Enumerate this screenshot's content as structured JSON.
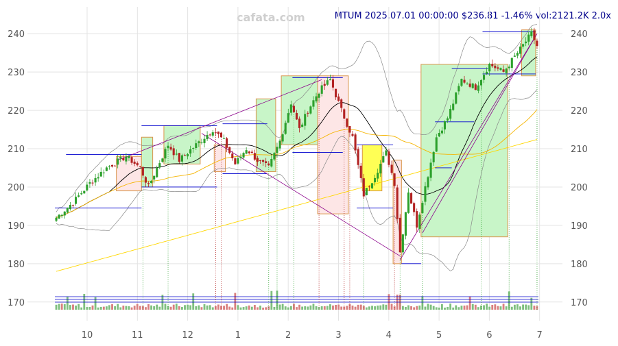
{
  "header": {
    "brand": "cafata.com",
    "quote": "MTUM 2025.07.01 00:00:00 $236.81 -1.46% vol:2121.2K 2.0x"
  },
  "colors": {
    "up": "#2ca02c",
    "down": "#b22222",
    "grid": "#e3e3e3",
    "bb_band": "#888888",
    "ma_short": "#000000",
    "ma_mid": "#f5b400",
    "ma_long": "#ffd700",
    "trend": "#8b008b",
    "level": "#0000cd",
    "box_green_fill": "#c8f5c8",
    "box_green_stroke": "#d9944a",
    "box_red_fill": "#fde6e6",
    "box_yellow_fill": "#ffff55"
  },
  "chart_data": {
    "type": "candlestick",
    "title": "MTUM 2025.07.01 00:00:00 $236.81 -1.46% vol:2121.2K 2.0x",
    "x_ticks": [
      "10",
      "11",
      "12",
      "1",
      "2",
      "3",
      "4",
      "5",
      "6",
      "7"
    ],
    "y_ticks": [
      170,
      180,
      190,
      200,
      210,
      220,
      230,
      240
    ],
    "ylim": [
      168,
      247
    ],
    "grid": true,
    "last_price": 236.81,
    "change_pct": -1.46,
    "volume": "2121.2K",
    "volume_ratio": "2.0x",
    "close_waypoints": [
      [
        0,
        192
      ],
      [
        6,
        196
      ],
      [
        12,
        201
      ],
      [
        18,
        205
      ],
      [
        25,
        208
      ],
      [
        30,
        205
      ],
      [
        33,
        200
      ],
      [
        36,
        205
      ],
      [
        40,
        211
      ],
      [
        44,
        207
      ],
      [
        50,
        211
      ],
      [
        56,
        215
      ],
      [
        60,
        212
      ],
      [
        64,
        206
      ],
      [
        68,
        210
      ],
      [
        72,
        207
      ],
      [
        76,
        205
      ],
      [
        80,
        212
      ],
      [
        84,
        222
      ],
      [
        87,
        215
      ],
      [
        90,
        220
      ],
      [
        94,
        225
      ],
      [
        98,
        228
      ],
      [
        102,
        220
      ],
      [
        106,
        213
      ],
      [
        110,
        198
      ],
      [
        114,
        203
      ],
      [
        118,
        209
      ],
      [
        121,
        201
      ],
      [
        123,
        183
      ],
      [
        126,
        199
      ],
      [
        129,
        190
      ],
      [
        132,
        200
      ],
      [
        136,
        213
      ],
      [
        140,
        218
      ],
      [
        145,
        228
      ],
      [
        150,
        226
      ],
      [
        155,
        232
      ],
      [
        160,
        230
      ],
      [
        165,
        235
      ],
      [
        170,
        240
      ],
      [
        172,
        237
      ]
    ],
    "total_bars": 173,
    "boxes": [
      {
        "x0": 22,
        "x1": 31,
        "y0": 199,
        "y1": 208,
        "kind": "red"
      },
      {
        "x0": 31,
        "x1": 35,
        "y0": 200,
        "y1": 213,
        "kind": "green"
      },
      {
        "x0": 39,
        "x1": 52,
        "y0": 206,
        "y1": 216,
        "kind": "green"
      },
      {
        "x0": 57,
        "x1": 61,
        "y0": 204,
        "y1": 211,
        "kind": "red"
      },
      {
        "x0": 72,
        "x1": 79,
        "y0": 204,
        "y1": 223,
        "kind": "green"
      },
      {
        "x0": 81,
        "x1": 94,
        "y0": 211,
        "y1": 229,
        "kind": "green"
      },
      {
        "x0": 94,
        "x1": 105,
        "y0": 193,
        "y1": 229,
        "kind": "red"
      },
      {
        "x0": 110,
        "x1": 117,
        "y0": 199,
        "y1": 211,
        "kind": "yellow"
      },
      {
        "x0": 121,
        "x1": 124,
        "y0": 180,
        "y1": 207,
        "kind": "red"
      },
      {
        "x0": 131,
        "x1": 162,
        "y0": 187,
        "y1": 232,
        "kind": "green"
      },
      {
        "x0": 167,
        "x1": 172,
        "y0": 229,
        "y1": 241,
        "kind": "green"
      }
    ],
    "levels": [
      {
        "x0": 0,
        "x1": 31,
        "y": 194.5
      },
      {
        "x0": 4,
        "x1": 31,
        "y": 208.5
      },
      {
        "x0": 31,
        "x1": 58,
        "y": 216
      },
      {
        "x0": 31,
        "x1": 58,
        "y": 200
      },
      {
        "x0": 60,
        "x1": 76,
        "y": 216.5
      },
      {
        "x0": 60,
        "x1": 76,
        "y": 203.5
      },
      {
        "x0": 85,
        "x1": 103,
        "y": 228.5
      },
      {
        "x0": 85,
        "x1": 103,
        "y": 209
      },
      {
        "x0": 108,
        "x1": 121,
        "y": 211
      },
      {
        "x0": 108,
        "x1": 121,
        "y": 194.5
      },
      {
        "x0": 124,
        "x1": 131,
        "y": 180
      },
      {
        "x0": 136,
        "x1": 142,
        "y": 205
      },
      {
        "x0": 136,
        "x1": 150,
        "y": 217
      },
      {
        "x0": 142,
        "x1": 155,
        "y": 231
      },
      {
        "x0": 153,
        "x1": 172,
        "y": 240.5
      },
      {
        "x0": 153,
        "x1": 172,
        "y": 229.5
      }
    ],
    "trendlines": [
      {
        "x0": 22,
        "y0": 207,
        "x1": 95,
        "y1": 228
      },
      {
        "x0": 52,
        "y0": 214,
        "x1": 123,
        "y1": 182
      },
      {
        "x0": 123,
        "y0": 181,
        "x1": 172,
        "y1": 240
      },
      {
        "x0": 131,
        "y0": 188,
        "x1": 172,
        "y1": 240
      }
    ]
  }
}
